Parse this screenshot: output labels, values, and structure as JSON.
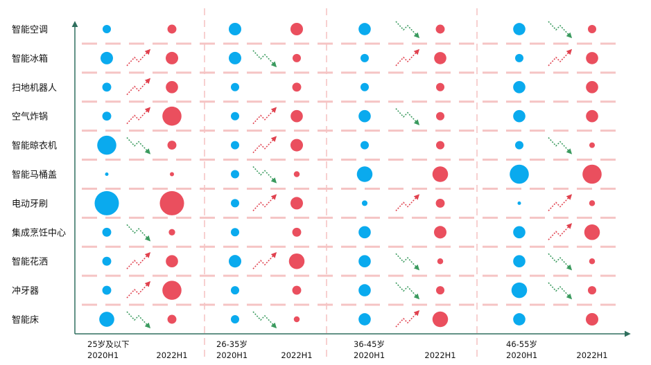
{
  "chart_data": {
    "type": "bubble-matrix",
    "title": "",
    "colors": {
      "y2020": "#0aaaee",
      "y2022": "#ea4f5e",
      "up": "#e0424f",
      "down": "#3a9a5e",
      "grid": "#f5c4c4",
      "axis": "#2f6f5e"
    },
    "categories": [
      "智能空调",
      "智能冰箱",
      "扫地机器人",
      "空气炸锅",
      "智能晾衣机",
      "智能马桶盖",
      "电动牙刷",
      "集成烹饪中心",
      "智能花洒",
      "冲牙器",
      "智能床"
    ],
    "groups": [
      {
        "label": "25岁及以下",
        "left": "2020H1",
        "right": "2022H1",
        "v2020": [
          2,
          4.5,
          2.3,
          2.3,
          10.5,
          0.35,
          17,
          2.3,
          2.3,
          2.3,
          6.5
        ],
        "v2022": [
          2.3,
          4.5,
          4.3,
          10.5,
          2.3,
          0.5,
          17,
          1.2,
          4.3,
          10.5,
          2.3
        ],
        "trend": [
          "",
          "up",
          "up",
          "up",
          "down",
          "",
          "",
          "down",
          "up",
          "up",
          "down"
        ]
      },
      {
        "label": "26-35岁",
        "left": "2020H1",
        "right": "2022H1",
        "v2020": [
          4.5,
          4.5,
          2,
          2,
          2,
          2,
          2,
          2,
          4.5,
          2,
          2
        ],
        "v2022": [
          4.5,
          2,
          2.3,
          4.3,
          4.5,
          1,
          4.5,
          2.3,
          7,
          2.3,
          1
        ],
        "trend": [
          "",
          "down",
          "",
          "up",
          "up",
          "down",
          "up",
          "",
          "up",
          "",
          "down"
        ]
      },
      {
        "label": "36-45岁",
        "left": "2020H1",
        "right": "2022H1",
        "v2020": [
          4.3,
          2,
          2,
          4.3,
          2,
          7,
          0.9,
          4.3,
          4.3,
          4.3,
          4.3
        ],
        "v2022": [
          2.3,
          4.3,
          2,
          2,
          2,
          7,
          2.3,
          4.5,
          1,
          2,
          7
        ],
        "trend": [
          "down",
          "up",
          "",
          "down",
          "",
          "",
          "up",
          "",
          "down",
          "down",
          "up"
        ]
      },
      {
        "label": "46-55岁",
        "left": "2020H1",
        "right": "2022H1",
        "v2020": [
          4.3,
          2,
          4.3,
          4.3,
          2,
          10.5,
          0.35,
          4.3,
          4.3,
          7,
          4.3
        ],
        "v2022": [
          2,
          4.3,
          4.3,
          4.3,
          0.9,
          10.5,
          1,
          7,
          1,
          2,
          4.5
        ],
        "trend": [
          "down",
          "up",
          "",
          "",
          "down",
          "",
          "up",
          "up",
          "down",
          "down",
          ""
        ]
      }
    ],
    "xlabel": "",
    "ylabel": ""
  }
}
